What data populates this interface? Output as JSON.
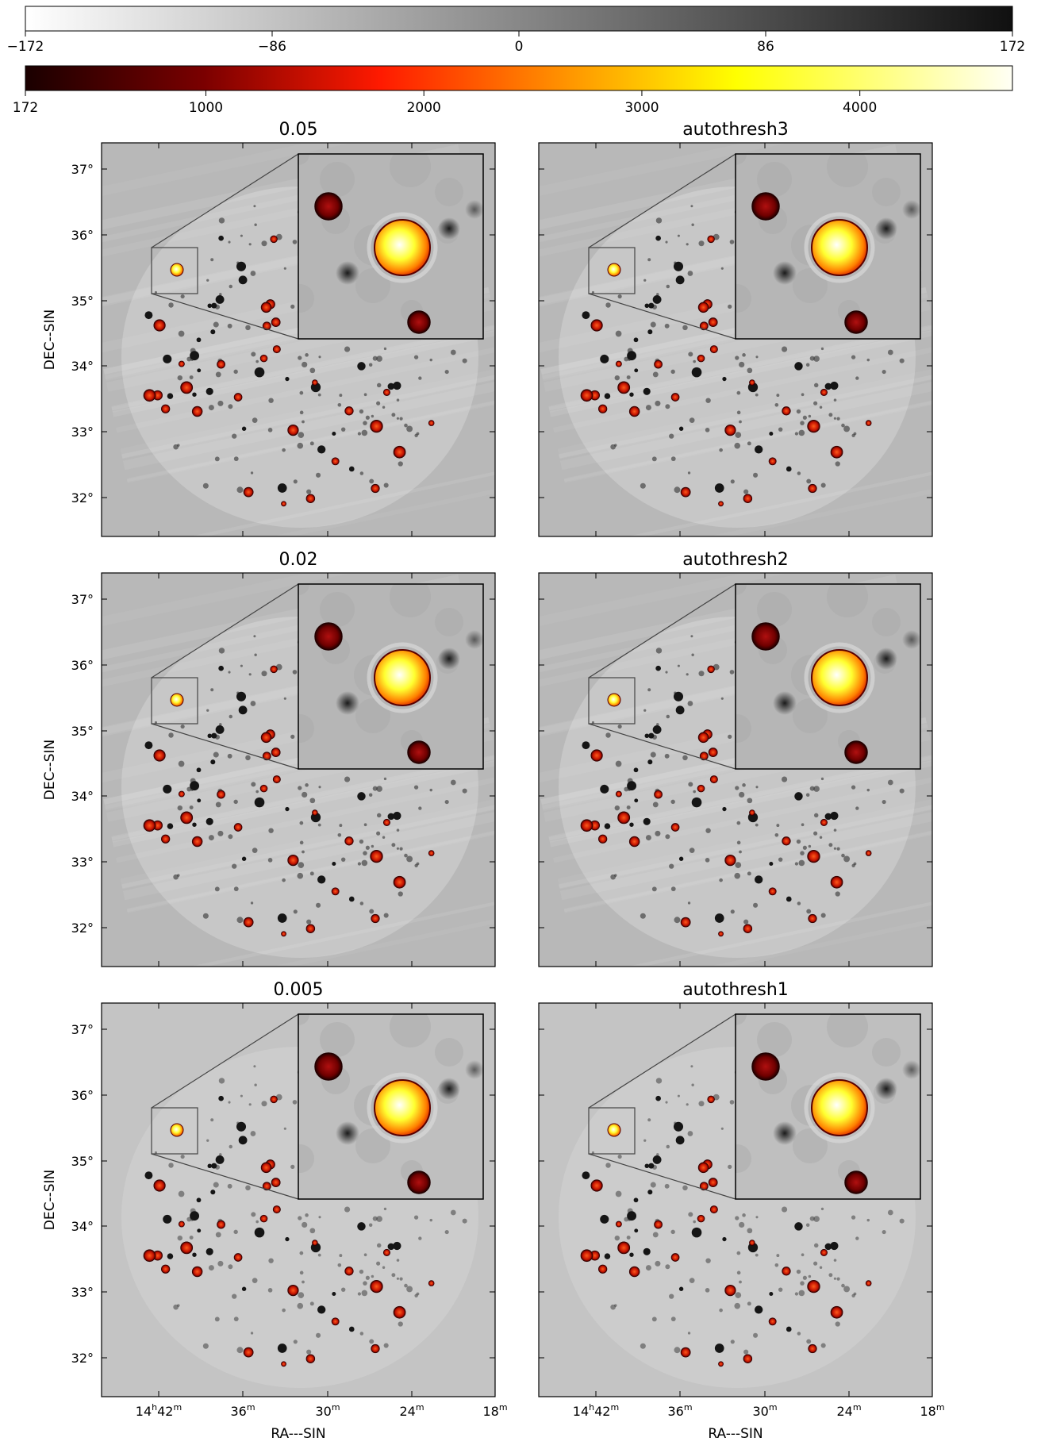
{
  "figure": {
    "gray_colorbar": {
      "ticks": [
        "−172",
        "−86",
        "0",
        "86",
        "172"
      ],
      "range": [
        -172,
        172
      ],
      "from": "#ffffff",
      "to": "#101010"
    },
    "heat_colorbar": {
      "ticks": [
        "172",
        "1000",
        "2000",
        "3000",
        "4000"
      ],
      "tick_values": [
        172,
        1000,
        2000,
        3000,
        4000
      ],
      "range": [
        172,
        4700
      ],
      "colormap": "hot"
    },
    "y_axis_label": "DEC--SIN",
    "x_axis_label": "RA---SIN",
    "y_tick_labels": [
      "37°",
      "36°",
      "35°",
      "34°",
      "33°",
      "32°"
    ],
    "x_tick_labels": [
      {
        "main": "14",
        "sup": "h",
        "main2": "42",
        "sup2": "m"
      },
      {
        "main": "36",
        "sup": "m"
      },
      {
        "main": "30",
        "sup": "m"
      },
      {
        "main": "24",
        "sup": "m"
      },
      {
        "main": "18",
        "sup": "m"
      }
    ]
  },
  "chart_data": [
    {
      "type": "heatmap",
      "title": "0.05"
    },
    {
      "type": "heatmap",
      "title": "autothresh3"
    },
    {
      "type": "heatmap",
      "title": "0.02"
    },
    {
      "type": "heatmap",
      "title": "autothresh2"
    },
    {
      "type": "heatmap",
      "title": "0.005"
    },
    {
      "type": "heatmap",
      "title": "autothresh1"
    }
  ]
}
